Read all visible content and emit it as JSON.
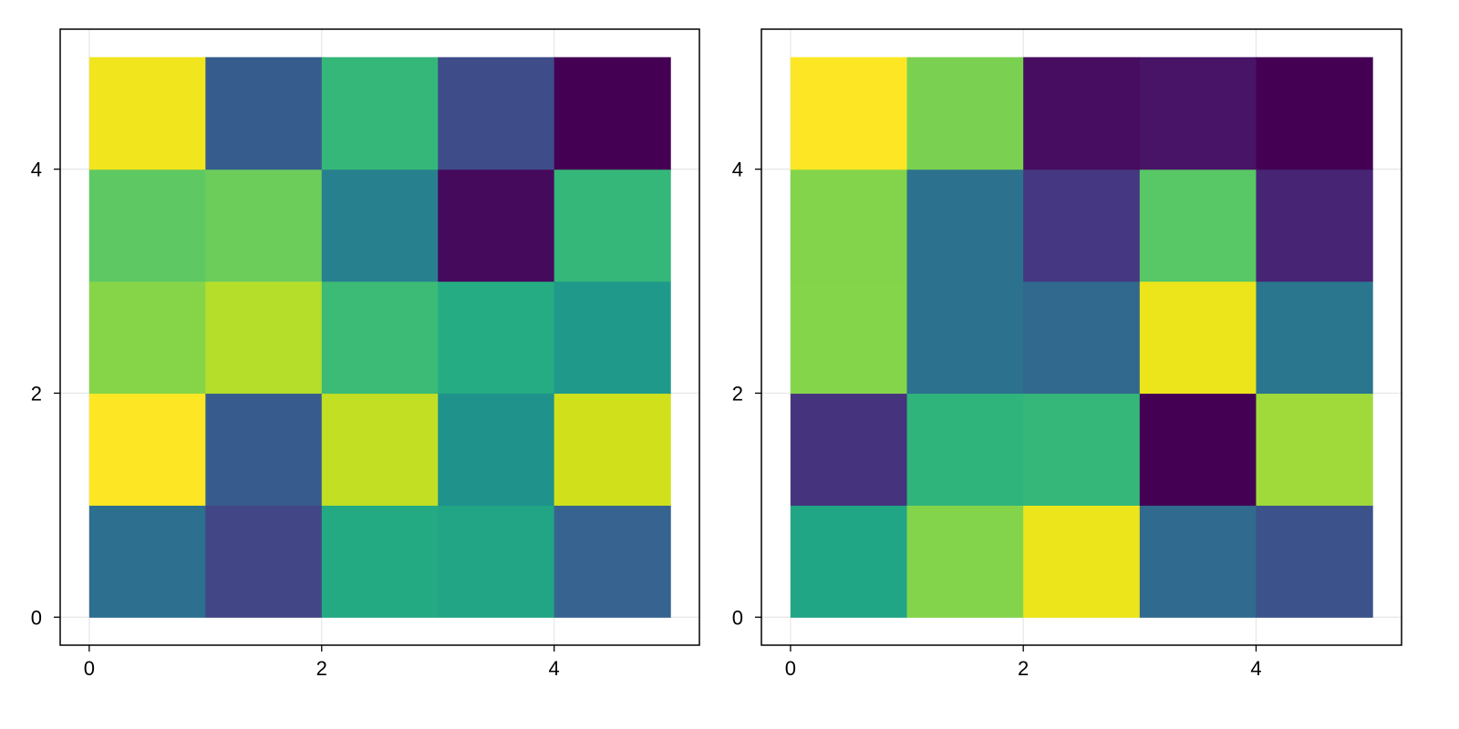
{
  "chart_data": [
    {
      "type": "heatmap",
      "title": "",
      "xlabel": "",
      "ylabel": "",
      "xlim": [
        -0.25,
        5.25
      ],
      "ylim": [
        -0.25,
        5.25
      ],
      "x_ticks": [
        0,
        2,
        4
      ],
      "y_ticks": [
        0,
        2,
        4
      ],
      "x_tick_labels": [
        "0",
        "2",
        "4"
      ],
      "y_tick_labels": [
        "0",
        "2",
        "4"
      ],
      "grid": true,
      "rows_bottom_to_top": [
        [
          "#2c6f8e",
          "#424686",
          "#23aa83",
          "#21a585",
          "#366390"
        ],
        [
          "#fde725",
          "#375b8d",
          "#c2df23",
          "#1f928c",
          "#d0e11c"
        ],
        [
          "#86d549",
          "#b5de2b",
          "#3bbb75",
          "#25ac82",
          "#1f9a8a"
        ],
        [
          "#5ec962",
          "#6ccd5a",
          "#27808e",
          "#460a5d",
          "#35b779"
        ],
        [
          "#f1e51d",
          "#365c8d",
          "#35b779",
          "#3e4c8a",
          "#440154"
        ]
      ]
    },
    {
      "type": "heatmap",
      "title": "",
      "xlabel": "",
      "ylabel": "",
      "xlim": [
        -0.25,
        5.25
      ],
      "ylim": [
        -0.25,
        5.25
      ],
      "x_ticks": [
        0,
        2,
        4
      ],
      "y_ticks": [
        0,
        2,
        4
      ],
      "x_tick_labels": [
        "0",
        "2",
        "4"
      ],
      "y_tick_labels": [
        "0",
        "2",
        "4"
      ],
      "grid": true,
      "rows_bottom_to_top": [
        [
          "#21a685",
          "#84d44b",
          "#ece51b",
          "#306a8e",
          "#3b528b"
        ],
        [
          "#46337e",
          "#2fb47c",
          "#35b779",
          "#440154",
          "#9fda3a"
        ],
        [
          "#85d54a",
          "#2c718e",
          "#31688e",
          "#ece51b",
          "#2a768e"
        ],
        [
          "#84d44b",
          "#2c718e",
          "#453781",
          "#58c765",
          "#482475"
        ],
        [
          "#fde725",
          "#7ad151",
          "#470d60",
          "#481467",
          "#440154"
        ]
      ]
    }
  ]
}
